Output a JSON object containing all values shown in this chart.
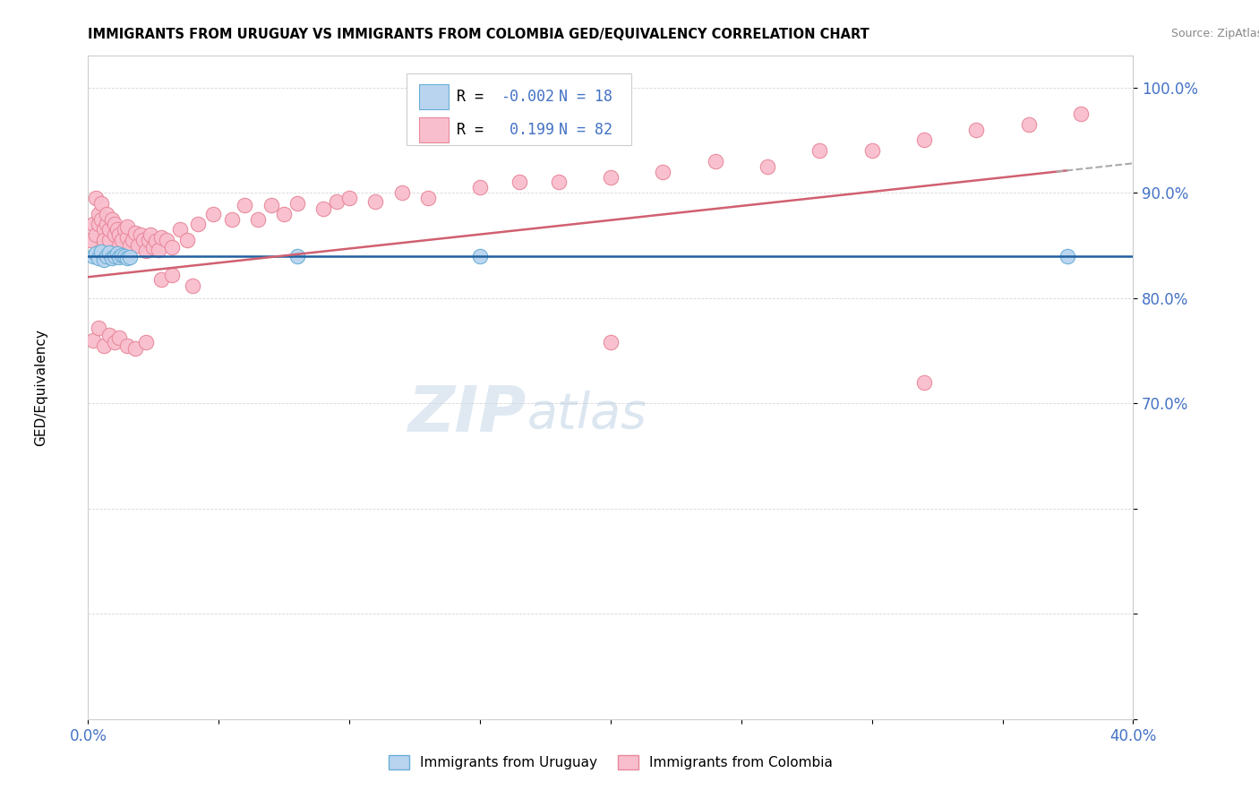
{
  "title": "IMMIGRANTS FROM URUGUAY VS IMMIGRANTS FROM COLOMBIA GED/EQUIVALENCY CORRELATION CHART",
  "source": "Source: ZipAtlas.com",
  "ylabel": "GED/Equivalency",
  "xlim": [
    0.0,
    0.4
  ],
  "ylim": [
    0.4,
    1.03
  ],
  "xticks": [
    0.0,
    0.05,
    0.1,
    0.15,
    0.2,
    0.25,
    0.3,
    0.35,
    0.4
  ],
  "xticklabels": [
    "0.0%",
    "",
    "",
    "",
    "",
    "",
    "",
    "",
    "40.0%"
  ],
  "yticks": [
    0.4,
    0.5,
    0.6,
    0.7,
    0.8,
    0.9,
    1.0
  ],
  "yticklabels": [
    "",
    "",
    "",
    "70.0%",
    "80.0%",
    "90.0%",
    "100.0%"
  ],
  "legend_R_uruguay": "-0.002",
  "legend_N_uruguay": "18",
  "legend_R_colombia": "0.199",
  "legend_N_colombia": "82",
  "uruguay_color": "#b8d4ee",
  "colombia_color": "#f9bece",
  "uruguay_edge": "#6aaed6",
  "colombia_edge": "#e8889a",
  "uruguay_line_color": "#2060a0",
  "colombia_line_color": "#d06070",
  "tick_color": "#4472c4",
  "watermark_text": "ZIP",
  "watermark_text2": "atlas",
  "uruguay_x": [
    0.002,
    0.003,
    0.004,
    0.005,
    0.006,
    0.007,
    0.008,
    0.009,
    0.01,
    0.011,
    0.012,
    0.013,
    0.014,
    0.015,
    0.016,
    0.08,
    0.15,
    0.375
  ],
  "uruguay_y": [
    0.84,
    0.842,
    0.838,
    0.844,
    0.836,
    0.84,
    0.843,
    0.838,
    0.84,
    0.842,
    0.839,
    0.841,
    0.84,
    0.838,
    0.839,
    0.84,
    0.84,
    0.84
  ],
  "colombia_x": [
    0.001,
    0.002,
    0.003,
    0.003,
    0.004,
    0.004,
    0.005,
    0.005,
    0.006,
    0.006,
    0.007,
    0.007,
    0.008,
    0.008,
    0.009,
    0.01,
    0.01,
    0.011,
    0.012,
    0.012,
    0.013,
    0.014,
    0.015,
    0.015,
    0.016,
    0.017,
    0.018,
    0.019,
    0.02,
    0.021,
    0.022,
    0.023,
    0.024,
    0.025,
    0.026,
    0.027,
    0.028,
    0.03,
    0.032,
    0.035,
    0.038,
    0.042,
    0.048,
    0.055,
    0.06,
    0.065,
    0.07,
    0.075,
    0.08,
    0.09,
    0.095,
    0.1,
    0.11,
    0.12,
    0.13,
    0.15,
    0.165,
    0.18,
    0.2,
    0.22,
    0.24,
    0.26,
    0.28,
    0.3,
    0.32,
    0.34,
    0.36,
    0.38,
    0.002,
    0.004,
    0.006,
    0.008,
    0.01,
    0.012,
    0.015,
    0.018,
    0.022,
    0.2,
    0.32,
    0.028,
    0.032,
    0.04
  ],
  "colombia_y": [
    0.855,
    0.87,
    0.86,
    0.895,
    0.88,
    0.87,
    0.875,
    0.89,
    0.865,
    0.855,
    0.87,
    0.88,
    0.855,
    0.865,
    0.875,
    0.86,
    0.87,
    0.865,
    0.85,
    0.86,
    0.855,
    0.865,
    0.858,
    0.868,
    0.85,
    0.855,
    0.862,
    0.85,
    0.86,
    0.855,
    0.845,
    0.855,
    0.86,
    0.848,
    0.854,
    0.846,
    0.858,
    0.855,
    0.848,
    0.865,
    0.855,
    0.87,
    0.88,
    0.875,
    0.888,
    0.875,
    0.888,
    0.88,
    0.89,
    0.885,
    0.892,
    0.895,
    0.892,
    0.9,
    0.895,
    0.905,
    0.91,
    0.91,
    0.915,
    0.92,
    0.93,
    0.925,
    0.94,
    0.94,
    0.95,
    0.96,
    0.965,
    0.975,
    0.76,
    0.772,
    0.755,
    0.765,
    0.758,
    0.762,
    0.755,
    0.752,
    0.758,
    0.758,
    0.72,
    0.818,
    0.822,
    0.812
  ]
}
